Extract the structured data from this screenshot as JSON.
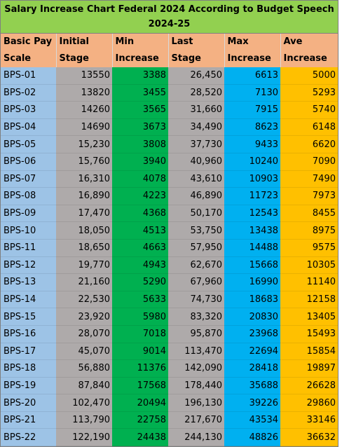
{
  "title": {
    "line1": "Salary Increase Chart Federal 2024 According to Budget Speech",
    "line2": "2024-25"
  },
  "headers": [
    {
      "line1": "Basic Pay",
      "line2": "Scale"
    },
    {
      "line1": "Initial",
      "line2": "Stage"
    },
    {
      "line1": "Min",
      "line2": "Increase"
    },
    {
      "line1": "Last",
      "line2": "Stage"
    },
    {
      "line1": "Max",
      "line2": "Increase"
    },
    {
      "line1": "Ave",
      "line2": "Increase"
    }
  ],
  "colors": {
    "title_bg": "#92d050",
    "header_bg": "#f4b183",
    "scale_bg": "#9dc3e6",
    "stage_bg": "#aeaaaa",
    "min_bg": "#00b050",
    "max_bg": "#00b0f0",
    "ave_bg": "#ffc000"
  },
  "rows": [
    [
      "BPS-01",
      "13550",
      "3388",
      "26,450",
      "6613",
      "5000"
    ],
    [
      "BPS-02",
      "13820",
      "3455",
      "28,520",
      "7130",
      "5293"
    ],
    [
      "BPS-03",
      "14260",
      "3565",
      "31,660",
      "7915",
      "5740"
    ],
    [
      "BPS-04",
      "14690",
      "3673",
      "34,490",
      "8623",
      "6148"
    ],
    [
      "BPS-05",
      "15,230",
      "3808",
      "37,730",
      "9433",
      "6620"
    ],
    [
      "BPS-06",
      "15,760",
      "3940",
      "40,960",
      "10240",
      "7090"
    ],
    [
      "BPS-07",
      "16,310",
      "4078",
      "43,610",
      "10903",
      "7490"
    ],
    [
      "BPS-08",
      "16,890",
      "4223",
      "46,890",
      "11723",
      "7973"
    ],
    [
      "BPS-09",
      "17,470",
      "4368",
      "50,170",
      "12543",
      "8455"
    ],
    [
      "BPS-10",
      "18,050",
      "4513",
      "53,750",
      "13438",
      "8975"
    ],
    [
      "BPS-11",
      "18,650",
      "4663",
      "57,950",
      "14488",
      "9575"
    ],
    [
      "BPS-12",
      "19,770",
      "4943",
      "62,670",
      "15668",
      "10305"
    ],
    [
      "BPS-13",
      "21,160",
      "5290",
      "67,960",
      "16990",
      "11140"
    ],
    [
      "BPS-14",
      "22,530",
      "5633",
      "74,730",
      "18683",
      "12158"
    ],
    [
      "BPS-15",
      "23,920",
      "5980",
      "83,320",
      "20830",
      "13405"
    ],
    [
      "BPS-16",
      "28,070",
      "7018",
      "95,870",
      "23968",
      "15493"
    ],
    [
      "BPS-17",
      "45,070",
      "9014",
      "113,470",
      "22694",
      "15854"
    ],
    [
      "BPS-18",
      "56,880",
      "11376",
      "142,090",
      "28418",
      "19897"
    ],
    [
      "BPS-19",
      "87,840",
      "17568",
      "178,440",
      "35688",
      "26628"
    ],
    [
      "BPS-20",
      "102,470",
      "20494",
      "196,130",
      "39226",
      "29860"
    ],
    [
      "BPS-21",
      "113,790",
      "22758",
      "217,670",
      "43534",
      "33146"
    ],
    [
      "BPS-22",
      "122,190",
      "24438",
      "244,130",
      "48826",
      "36632"
    ]
  ]
}
